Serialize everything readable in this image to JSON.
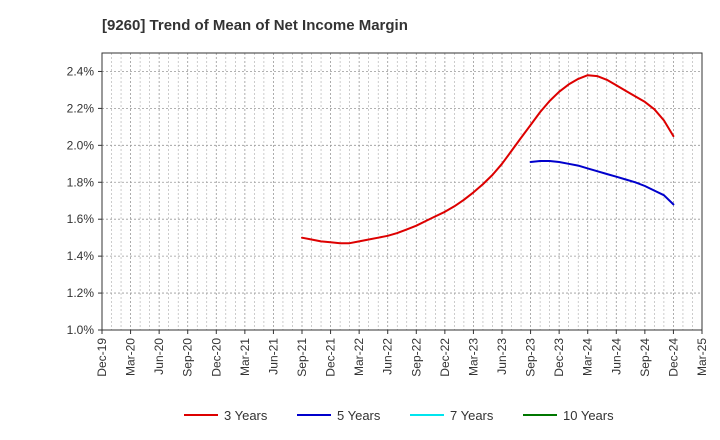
{
  "chart_data": {
    "type": "line",
    "title": "[9260]  Trend of Mean of Net Income Margin",
    "xlabel": "",
    "ylabel": "",
    "x_ticks": [
      "Dec-19",
      "Mar-20",
      "Jun-20",
      "Sep-20",
      "Dec-20",
      "Mar-21",
      "Jun-21",
      "Sep-21",
      "Dec-21",
      "Mar-22",
      "Jun-22",
      "Sep-22",
      "Dec-22",
      "Mar-23",
      "Jun-23",
      "Sep-23",
      "Dec-23",
      "Mar-24",
      "Jun-24",
      "Sep-24",
      "Dec-24",
      "Mar-25"
    ],
    "y_ticks": [
      "1.0%",
      "1.2%",
      "1.4%",
      "1.6%",
      "1.8%",
      "2.0%",
      "2.2%",
      "2.4%"
    ],
    "ylim": [
      1.0,
      2.5
    ],
    "grid": true,
    "legend_position": "bottom",
    "series": [
      {
        "name": "3 Years",
        "color": "#dd0000",
        "points": [
          [
            "Sep-21",
            1.5
          ],
          [
            "Oct-21",
            1.49
          ],
          [
            "Nov-21",
            1.48
          ],
          [
            "Dec-21",
            1.475
          ],
          [
            "Jan-22",
            1.47
          ],
          [
            "Feb-22",
            1.47
          ],
          [
            "Mar-22",
            1.48
          ],
          [
            "Apr-22",
            1.49
          ],
          [
            "May-22",
            1.5
          ],
          [
            "Jun-22",
            1.51
          ],
          [
            "Jul-22",
            1.525
          ],
          [
            "Aug-22",
            1.545
          ],
          [
            "Sep-22",
            1.565
          ],
          [
            "Oct-22",
            1.59
          ],
          [
            "Nov-22",
            1.615
          ],
          [
            "Dec-22",
            1.64
          ],
          [
            "Jan-23",
            1.67
          ],
          [
            "Feb-23",
            1.705
          ],
          [
            "Mar-23",
            1.745
          ],
          [
            "Apr-23",
            1.79
          ],
          [
            "May-23",
            1.84
          ],
          [
            "Jun-23",
            1.9
          ],
          [
            "Jul-23",
            1.97
          ],
          [
            "Aug-23",
            2.04
          ],
          [
            "Sep-23",
            2.11
          ],
          [
            "Oct-23",
            2.18
          ],
          [
            "Nov-23",
            2.24
          ],
          [
            "Dec-23",
            2.29
          ],
          [
            "Jan-24",
            2.33
          ],
          [
            "Feb-24",
            2.36
          ],
          [
            "Mar-24",
            2.38
          ],
          [
            "Apr-24",
            2.375
          ],
          [
            "May-24",
            2.355
          ],
          [
            "Jun-24",
            2.325
          ],
          [
            "Jul-24",
            2.295
          ],
          [
            "Aug-24",
            2.265
          ],
          [
            "Sep-24",
            2.235
          ],
          [
            "Oct-24",
            2.195
          ],
          [
            "Nov-24",
            2.135
          ],
          [
            "Dec-24",
            2.05
          ]
        ]
      },
      {
        "name": "5 Years",
        "color": "#0000cc",
        "points": [
          [
            "Sep-23",
            1.91
          ],
          [
            "Oct-23",
            1.915
          ],
          [
            "Nov-23",
            1.915
          ],
          [
            "Dec-23",
            1.91
          ],
          [
            "Jan-24",
            1.9
          ],
          [
            "Feb-24",
            1.89
          ],
          [
            "Mar-24",
            1.875
          ],
          [
            "Apr-24",
            1.86
          ],
          [
            "May-24",
            1.845
          ],
          [
            "Jun-24",
            1.83
          ],
          [
            "Jul-24",
            1.815
          ],
          [
            "Aug-24",
            1.8
          ],
          [
            "Sep-24",
            1.78
          ],
          [
            "Oct-24",
            1.755
          ],
          [
            "Nov-24",
            1.73
          ],
          [
            "Dec-24",
            1.68
          ]
        ]
      },
      {
        "name": "7 Years",
        "color": "#00e5ee",
        "points": []
      },
      {
        "name": "10 Years",
        "color": "#007700",
        "points": []
      }
    ]
  }
}
